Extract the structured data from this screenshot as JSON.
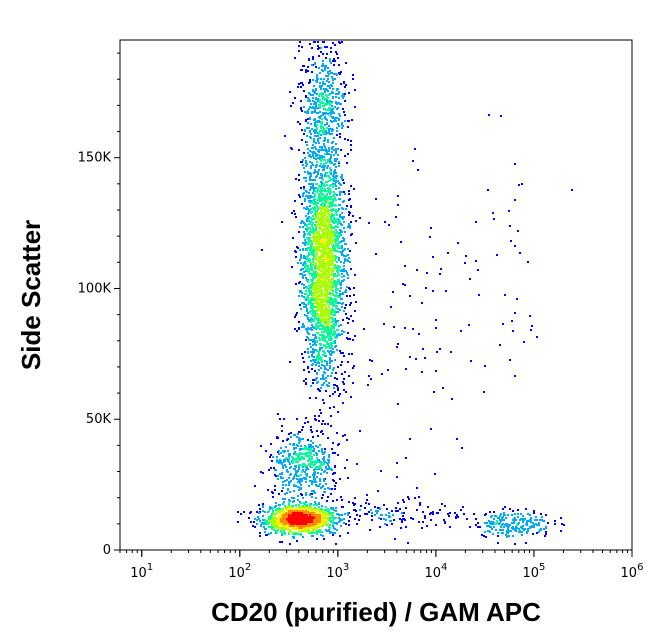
{
  "chart_data": {
    "type": "scatter",
    "style": "density-dot-plot",
    "title": "",
    "xlabel": "CD20 (purified) / GAM APC",
    "ylabel": "Side Scatter",
    "x_scale": "log",
    "xlim": [
      6,
      1000000
    ],
    "ylim": [
      0,
      195000
    ],
    "x_ticks": [
      {
        "value": 10,
        "base": "10",
        "exp": "1"
      },
      {
        "value": 100,
        "base": "10",
        "exp": "2"
      },
      {
        "value": 1000,
        "base": "10",
        "exp": "3"
      },
      {
        "value": 10000,
        "base": "10",
        "exp": "4"
      },
      {
        "value": 100000,
        "base": "10",
        "exp": "5"
      },
      {
        "value": 1000000,
        "base": "10",
        "exp": "6"
      }
    ],
    "y_ticks": [
      {
        "value": 0,
        "label": "0"
      },
      {
        "value": 50000,
        "label": "50K"
      },
      {
        "value": 100000,
        "label": "100K"
      },
      {
        "value": 150000,
        "label": "150K"
      }
    ],
    "density_colors": [
      "#0000ff",
      "#00aaff",
      "#00ff99",
      "#aaff00",
      "#ffee00",
      "#ff8800",
      "#ff0000"
    ],
    "populations": [
      {
        "x_center": 400,
        "x_spread_decades": 0.18,
        "y_center": 12000,
        "y_spread": 2500,
        "relative_count": 1400
      },
      {
        "x_center": 700,
        "x_spread_decades": 0.11,
        "y_center": 110000,
        "y_spread": 22000,
        "relative_count": 2600
      },
      {
        "x_center": 450,
        "x_spread_decades": 0.17,
        "y_center": 33000,
        "y_spread": 7000,
        "relative_count": 500
      },
      {
        "x_center": 700,
        "x_spread_decades": 0.12,
        "y_center": 170000,
        "y_spread": 12000,
        "relative_count": 500
      },
      {
        "x_center": 60000,
        "x_spread_decades": 0.2,
        "y_center": 10500,
        "y_spread": 2500,
        "relative_count": 220
      },
      {
        "x_center": 2500,
        "x_spread_decades": 0.5,
        "y_center": 14000,
        "y_spread": 3500,
        "relative_count": 180
      },
      {
        "x_center": 2500,
        "x_spread_decades": 0.6,
        "y_center": 90000,
        "y_spread": 40000,
        "relative_count": 130
      },
      {
        "x_center": 50000,
        "x_spread_decades": 0.25,
        "y_center": 110000,
        "y_spread": 25000,
        "relative_count": 30
      }
    ]
  }
}
